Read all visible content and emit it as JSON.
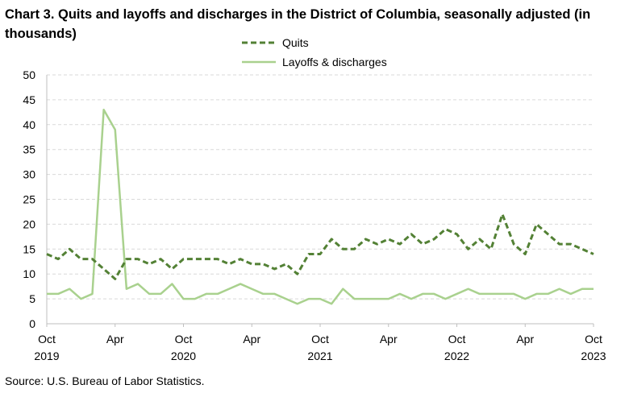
{
  "title": "Chart 3. Quits and layoffs and discharges in the District of Columbia, seasonally adjusted (in thousands)",
  "source": "Source: U.S. Bureau of Labor Statistics.",
  "chart_data": {
    "type": "line",
    "title": "Chart 3. Quits and layoffs and discharges in the District of Columbia, seasonally adjusted (in thousands)",
    "xlabel": "",
    "ylabel": "",
    "ylim": [
      0,
      50
    ],
    "yticks": [
      "0",
      "5",
      "10",
      "15",
      "20",
      "25",
      "30",
      "35",
      "40",
      "45",
      "50"
    ],
    "xticks": [
      {
        "month": "Oct",
        "year": "2019",
        "index": 0
      },
      {
        "month": "Apr",
        "year": "",
        "index": 6
      },
      {
        "month": "Oct",
        "year": "2020",
        "index": 12
      },
      {
        "month": "Apr",
        "year": "",
        "index": 18
      },
      {
        "month": "Oct",
        "year": "2021",
        "index": 24
      },
      {
        "month": "Apr",
        "year": "",
        "index": 30
      },
      {
        "month": "Oct",
        "year": "2022",
        "index": 36
      },
      {
        "month": "Apr",
        "year": "",
        "index": 42
      },
      {
        "month": "Oct",
        "year": "2023",
        "index": 48
      }
    ],
    "x_start": "2019-10",
    "x_end": "2023-10",
    "grid": "horizontal dashed",
    "legend_position": "top-center",
    "series": [
      {
        "name": "Quits",
        "style": "dashed",
        "color": "#538135",
        "values": [
          14,
          13,
          15,
          13,
          13,
          11,
          9,
          13,
          13,
          12,
          13,
          11,
          13,
          13,
          13,
          13,
          12,
          13,
          12,
          12,
          11,
          12,
          10,
          14,
          14,
          17,
          15,
          15,
          17,
          16,
          17,
          16,
          18,
          16,
          17,
          19,
          18,
          15,
          17,
          15,
          22,
          16,
          14,
          20,
          18,
          16,
          16,
          15,
          14
        ]
      },
      {
        "name": "Layoffs & discharges",
        "style": "solid",
        "color": "#a9d18e",
        "values": [
          6,
          6,
          7,
          5,
          6,
          43,
          39,
          7,
          8,
          6,
          6,
          8,
          5,
          5,
          6,
          6,
          7,
          8,
          7,
          6,
          6,
          5,
          4,
          5,
          5,
          4,
          7,
          5,
          5,
          5,
          5,
          6,
          5,
          6,
          6,
          5,
          6,
          7,
          6,
          6,
          6,
          6,
          5,
          6,
          6,
          7,
          6,
          7,
          7
        ]
      }
    ]
  }
}
